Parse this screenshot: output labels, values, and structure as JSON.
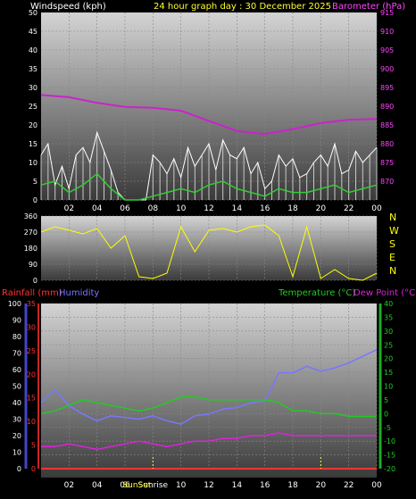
{
  "header": {
    "left_title": "Windspeed (kph)",
    "center_title": "24 hour graph day : 30 December 2025",
    "right_title": "Barometer (hPa)"
  },
  "colors": {
    "background": "#000000",
    "windspeed": "#ffffff",
    "gust": "#c8c8c8",
    "avg_wind": "#33cc33",
    "barometer": "#cc22cc",
    "direction": "#ffff00",
    "rainfall": "#ff3333",
    "humidity": "#7777ff",
    "temperature": "#22cc22",
    "dewpoint": "#dd22dd",
    "axis_text_left": "#ffffff",
    "title_yellow": "#ffff33",
    "baro_text": "#ff44ff",
    "dir_letters": "#ffff00"
  },
  "x_tick_labels": [
    "02",
    "04",
    "06",
    "08",
    "10",
    "12",
    "14",
    "16",
    "18",
    "20",
    "22",
    "00"
  ],
  "panel3_x_tick_labels": [
    "02",
    "04",
    "06",
    "Sunrise",
    "10",
    "12",
    "14",
    "16",
    "18",
    "20",
    "22",
    "00"
  ],
  "sun_label": "SunSet",
  "chart_data": [
    {
      "type": "line",
      "name": "wind-barometer",
      "x_unit": "hour",
      "xlim": [
        0,
        24
      ],
      "left_axis": {
        "label": "Windspeed (kph)",
        "ylim": [
          0,
          50
        ],
        "ticks": [
          0,
          5,
          10,
          15,
          20,
          25,
          30,
          35,
          40,
          45,
          50
        ]
      },
      "right_axis": {
        "label": "Barometer (hPa)",
        "ylim": [
          865,
          915
        ],
        "ticks": [
          870,
          875,
          880,
          885,
          890,
          895,
          900,
          905,
          910,
          915
        ]
      },
      "series": [
        {
          "name": "Barometer (hPa)",
          "axis": "right",
          "x": [
            0,
            2,
            4,
            6,
            8,
            10,
            12,
            14,
            16,
            18,
            20,
            22,
            24
          ],
          "values": [
            893.0,
            892.4,
            890.9,
            889.8,
            889.6,
            888.8,
            886.1,
            883.4,
            882.6,
            883.9,
            885.5,
            886.4,
            886.6
          ]
        },
        {
          "name": "Windspeed",
          "axis": "left",
          "x": [
            0,
            0.5,
            1,
            1.5,
            2,
            2.5,
            3,
            3.5,
            4,
            4.5,
            5,
            5.5,
            6,
            6.5,
            7,
            7.5,
            8,
            8.5,
            9,
            9.5,
            10,
            10.5,
            11,
            11.5,
            12,
            12.5,
            13,
            13.5,
            14,
            14.5,
            15,
            15.5,
            16,
            16.5,
            17,
            17.5,
            18,
            18.5,
            19,
            19.5,
            20,
            20.5,
            21,
            21.5,
            22,
            22.5,
            23,
            23.5,
            24
          ],
          "values": [
            12,
            15,
            4,
            9,
            3,
            12,
            14,
            10,
            18,
            13,
            8,
            2,
            0,
            0,
            0,
            0,
            12,
            10,
            7,
            11,
            6,
            14,
            9,
            12,
            15,
            8,
            16,
            12,
            11,
            14,
            7,
            10,
            3,
            5,
            12,
            9,
            11,
            6,
            7,
            10,
            12,
            9,
            15,
            7,
            8,
            13,
            10,
            12,
            14
          ]
        },
        {
          "name": "Average wind",
          "axis": "left",
          "x": [
            0,
            1,
            2,
            3,
            4,
            5,
            6,
            7,
            8,
            9,
            10,
            11,
            12,
            13,
            14,
            15,
            16,
            17,
            18,
            19,
            20,
            21,
            22,
            23,
            24
          ],
          "values": [
            4,
            5,
            2,
            4,
            7,
            3,
            0,
            0,
            1,
            2,
            3,
            2,
            4,
            5,
            3,
            2,
            1,
            3,
            2,
            2,
            3,
            4,
            2,
            3,
            4
          ]
        }
      ]
    },
    {
      "type": "line",
      "name": "wind-direction",
      "x_unit": "hour",
      "xlim": [
        0,
        24
      ],
      "ylim": [
        0,
        360
      ],
      "y_ticks": [
        0,
        90,
        180,
        270,
        360
      ],
      "compass_labels": [
        "N",
        "W",
        "S",
        "E",
        "N"
      ],
      "series": [
        {
          "name": "Wind direction",
          "x": [
            0,
            1,
            2,
            3,
            4,
            5,
            6,
            7,
            8,
            9,
            10,
            11,
            12,
            13,
            14,
            15,
            16,
            17,
            18,
            19,
            20,
            21,
            22,
            23,
            24
          ],
          "values": [
            270,
            300,
            280,
            260,
            290,
            180,
            250,
            20,
            10,
            40,
            300,
            160,
            280,
            290,
            270,
            300,
            310,
            250,
            20,
            300,
            10,
            60,
            10,
            0,
            40
          ]
        }
      ]
    },
    {
      "type": "line",
      "name": "temperature-humidity-rain",
      "x_unit": "hour",
      "xlim": [
        0,
        24
      ],
      "left_axes": [
        {
          "label": "Humidity",
          "ylim": [
            0,
            100
          ],
          "ticks": [
            0,
            10,
            20,
            30,
            40,
            50,
            60,
            70,
            80,
            90,
            100
          ]
        },
        {
          "label": "Rainfall (mm)",
          "ylim": [
            0,
            35
          ],
          "ticks": [
            0,
            5,
            10,
            15,
            20,
            25,
            30,
            35
          ]
        }
      ],
      "right_axis": {
        "label": "Temperature (°C)",
        "ylim": [
          -20,
          40
        ],
        "ticks": [
          -20,
          -15,
          -10,
          -5,
          0,
          5,
          10,
          15,
          20,
          25,
          30,
          35,
          40
        ]
      },
      "series": [
        {
          "name": "Humidity",
          "axis": "humidity",
          "x": [
            0,
            1,
            2,
            3,
            4,
            5,
            6,
            7,
            8,
            9,
            10,
            11,
            12,
            13,
            14,
            15,
            16,
            17,
            18,
            19,
            20,
            21,
            22,
            23,
            24
          ],
          "values": [
            40,
            48,
            38,
            33,
            29,
            32,
            31,
            30,
            32,
            29,
            27,
            32,
            33,
            36,
            37,
            40,
            41,
            58,
            58,
            62,
            59,
            61,
            64,
            68,
            72
          ]
        },
        {
          "name": "Rainfall (mm)",
          "axis": "rain",
          "x": [
            0,
            24
          ],
          "values": [
            0,
            0
          ]
        },
        {
          "name": "Temperature (°C)",
          "axis": "temp",
          "x": [
            0,
            1,
            2,
            3,
            4,
            5,
            6,
            7,
            8,
            9,
            10,
            11,
            12,
            13,
            14,
            15,
            16,
            17,
            18,
            19,
            20,
            21,
            22,
            23,
            24
          ],
          "values": [
            0,
            1,
            3,
            5,
            4,
            3,
            2,
            1,
            2,
            4,
            6,
            6,
            5,
            5,
            5,
            5,
            5,
            4,
            1,
            1,
            0,
            0,
            -1,
            -1,
            -1
          ]
        },
        {
          "name": "Dew Point (°C)",
          "axis": "temp",
          "x": [
            0,
            1,
            2,
            3,
            4,
            5,
            6,
            7,
            8,
            9,
            10,
            11,
            12,
            13,
            14,
            15,
            16,
            17,
            18,
            19,
            20,
            21,
            22,
            23,
            24
          ],
          "values": [
            -12,
            -12,
            -11,
            -12,
            -13,
            -12,
            -11,
            -10,
            -11,
            -12,
            -11,
            -10,
            -10,
            -9,
            -9,
            -8,
            -8,
            -7,
            -8,
            -8,
            -8,
            -8,
            -8,
            -8,
            -8
          ]
        }
      ]
    }
  ],
  "panel3_titles": {
    "rainfall": "Rainfall (mm)",
    "humidity": "Humidity",
    "temperature": "Temperature (°C)",
    "dewpoint": "Dew Point (°C)"
  }
}
